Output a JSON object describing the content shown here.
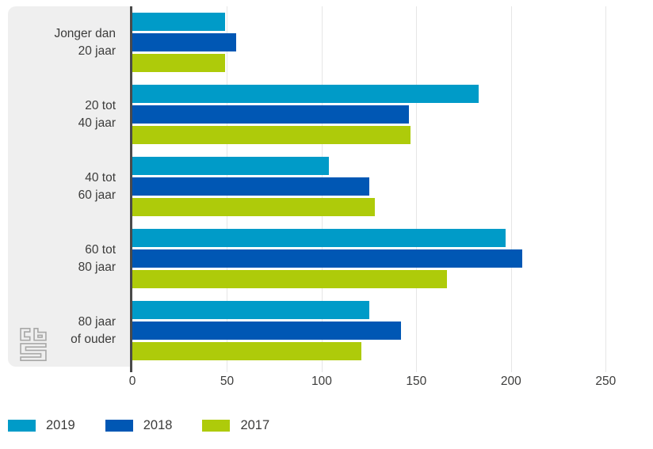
{
  "chart_data": {
    "type": "bar",
    "orientation": "horizontal",
    "title": "",
    "categories": [
      {
        "lines": [
          "Jonger dan",
          "20 jaar"
        ]
      },
      {
        "lines": [
          "20 tot",
          "40 jaar"
        ]
      },
      {
        "lines": [
          "40 tot",
          "60 jaar"
        ]
      },
      {
        "lines": [
          "60 tot",
          "80 jaar"
        ]
      },
      {
        "lines": [
          "80 jaar",
          "of ouder"
        ]
      }
    ],
    "series": [
      {
        "name": "2019",
        "color": "#009bc8",
        "values": [
          49,
          183,
          104,
          197,
          125
        ]
      },
      {
        "name": "2018",
        "color": "#0057b4",
        "values": [
          55,
          146,
          125,
          206,
          142
        ]
      },
      {
        "name": "2017",
        "color": "#aecb0a",
        "values": [
          49,
          147,
          128,
          166,
          121
        ]
      }
    ],
    "x_ticks": [
      0,
      50,
      100,
      150,
      200,
      250
    ],
    "xlim": [
      0,
      275
    ],
    "grid": true,
    "legend_position": "bottom-left"
  },
  "legend": {
    "items": [
      {
        "label": "2019",
        "color": "#009bc8"
      },
      {
        "label": "2018",
        "color": "#0057b4"
      },
      {
        "label": "2017",
        "color": "#aecb0a"
      }
    ]
  },
  "icons": {
    "logo": "cbs-logo"
  },
  "style": {
    "panel_bg": "#efefef",
    "axis_color": "#4a4a4a",
    "grid_color": "#e6e6e6",
    "text_color": "#3c3c3b",
    "logo_color": "#a8a8a7"
  }
}
